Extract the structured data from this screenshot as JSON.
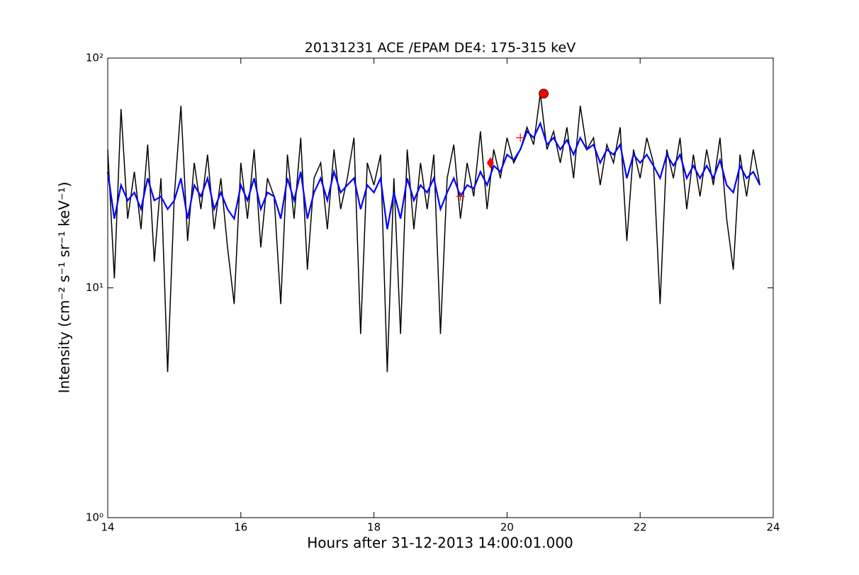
{
  "chart_data": {
    "type": "line",
    "title": "20131231 ACE /EPAM DE4: 175-315 keV",
    "xlabel": "Hours after 31-12-2013 14:00:01.000",
    "ylabel": "Intensity (cm⁻² s⁻¹ sr⁻¹ keV⁻¹)",
    "x": [
      14.0,
      14.1,
      14.2,
      14.3,
      14.4,
      14.5,
      14.6,
      14.7,
      14.8,
      14.9,
      15.0,
      15.1,
      15.2,
      15.3,
      15.4,
      15.5,
      15.6,
      15.7,
      15.8,
      15.9,
      16.0,
      16.1,
      16.2,
      16.3,
      16.4,
      16.5,
      16.6,
      16.7,
      16.8,
      16.9,
      17.0,
      17.1,
      17.2,
      17.3,
      17.4,
      17.5,
      17.6,
      17.7,
      17.8,
      17.9,
      18.0,
      18.1,
      18.2,
      18.3,
      18.4,
      18.5,
      18.6,
      18.7,
      18.8,
      18.9,
      19.0,
      19.1,
      19.2,
      19.3,
      19.4,
      19.5,
      19.6,
      19.7,
      19.8,
      19.9,
      20.0,
      20.1,
      20.2,
      20.3,
      20.4,
      20.5,
      20.6,
      20.7,
      20.8,
      20.9,
      21.0,
      21.1,
      21.2,
      21.3,
      21.4,
      21.5,
      21.6,
      21.7,
      21.8,
      21.9,
      22.0,
      22.1,
      22.2,
      22.3,
      22.4,
      22.5,
      22.6,
      22.7,
      22.8,
      22.9,
      23.0,
      23.1,
      23.2,
      23.3,
      23.4,
      23.5,
      23.6,
      23.7,
      23.8
    ],
    "series": [
      {
        "color": "#000000",
        "values": [
          40,
          11,
          60,
          20,
          32,
          18,
          42,
          13,
          30,
          4.3,
          25,
          62,
          16,
          35,
          22,
          38,
          18,
          30,
          15,
          8.5,
          35,
          20,
          40,
          15,
          30,
          25,
          8.5,
          38,
          20,
          45,
          12,
          30,
          35,
          18,
          40,
          22,
          30,
          45,
          6.3,
          35,
          28,
          38,
          4.3,
          30,
          6.3,
          40,
          18,
          35,
          22,
          38,
          6.3,
          30,
          42,
          20,
          35,
          25,
          48,
          22,
          40,
          30,
          45,
          35,
          40,
          50,
          42,
          70,
          40,
          48,
          35,
          50,
          30,
          62,
          40,
          45,
          28,
          42,
          35,
          50,
          16,
          40,
          30,
          45,
          35,
          8.5,
          40,
          30,
          45,
          22,
          38,
          25,
          40,
          28,
          45,
          20,
          12,
          38,
          25,
          40,
          28
        ]
      },
      {
        "color": "#0000ff",
        "values": [
          32,
          20,
          28,
          24,
          26,
          22,
          30,
          24,
          25,
          22,
          24,
          30,
          20,
          28,
          25,
          30,
          22,
          26,
          22,
          20,
          28,
          24,
          30,
          22,
          26,
          25,
          20,
          30,
          24,
          32,
          20,
          26,
          30,
          24,
          32,
          26,
          28,
          30,
          22,
          28,
          26,
          30,
          18,
          26,
          20,
          30,
          24,
          28,
          26,
          30,
          22,
          26,
          30,
          25,
          28,
          27,
          32,
          28,
          34,
          32,
          38,
          36,
          40,
          48,
          45,
          52,
          42,
          45,
          40,
          44,
          38,
          45,
          40,
          42,
          35,
          40,
          38,
          42,
          30,
          38,
          35,
          38,
          34,
          30,
          38,
          34,
          38,
          30,
          34,
          30,
          34,
          30,
          36,
          28,
          26,
          34,
          30,
          32,
          28
        ]
      }
    ],
    "markers": [
      {
        "x": 20.55,
        "y": 70,
        "shape": "circle",
        "color": "#ff0000"
      },
      {
        "x": 19.75,
        "y": 35,
        "shape": "diamond",
        "color": "#ff0000"
      },
      {
        "x": 20.2,
        "y": 45,
        "shape": "plus",
        "color": "#ff0000"
      },
      {
        "x": 19.3,
        "y": 25,
        "shape": "plus",
        "color": "#ff0000"
      }
    ],
    "xlim": [
      14,
      24
    ],
    "xticks": [
      14,
      16,
      18,
      20,
      22,
      24
    ],
    "ylim": [
      1,
      100
    ],
    "log_y": true,
    "yticks": [
      {
        "value": 1,
        "label": "10⁰"
      },
      {
        "value": 10,
        "label": "10¹"
      },
      {
        "value": 100,
        "label": "10²"
      }
    ]
  }
}
